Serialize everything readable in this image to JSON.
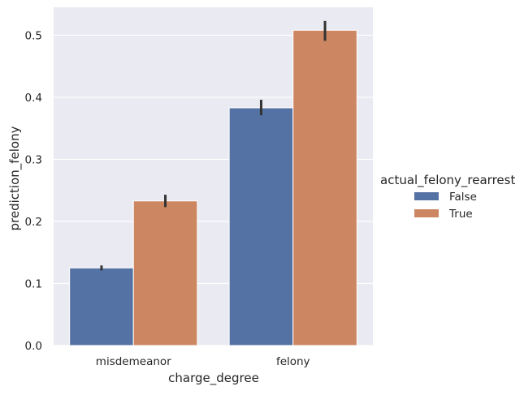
{
  "chart_data": {
    "type": "bar",
    "xlabel": "charge_degree",
    "ylabel": "prediction_felony",
    "categories": [
      "misdemeanor",
      "felony"
    ],
    "ylim": [
      0,
      0.545
    ],
    "yticks": [
      0.0,
      0.1,
      0.2,
      0.3,
      0.4,
      0.5
    ],
    "ytick_labels": [
      "0.0",
      "0.1",
      "0.2",
      "0.3",
      "0.4",
      "0.5"
    ],
    "grid": true,
    "legend": {
      "title": "actual_felony_rearrest",
      "placement": "right",
      "entries": [
        "False",
        "True"
      ]
    },
    "series": [
      {
        "name": "False",
        "color": "#5572a4",
        "values": [
          0.125,
          0.383
        ],
        "error_low": [
          0.121,
          0.371
        ],
        "error_high": [
          0.129,
          0.396
        ]
      },
      {
        "name": "True",
        "color": "#cc8762",
        "values": [
          0.233,
          0.508
        ],
        "error_low": [
          0.223,
          0.491
        ],
        "error_high": [
          0.243,
          0.523
        ]
      }
    ],
    "colors": {
      "plot_background": "#eaeaf2",
      "grid": "#ffffff",
      "error_bar": "#333333",
      "text": "#262626"
    }
  }
}
